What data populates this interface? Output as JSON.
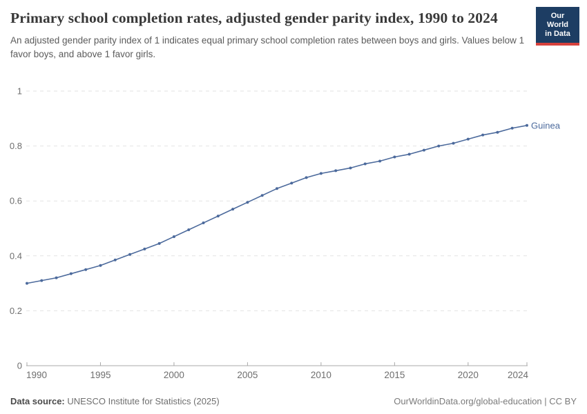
{
  "header": {
    "title": "Primary school completion rates, adjusted gender parity index, 1990 to 2024",
    "subtitle": "An adjusted gender parity index of 1 indicates equal primary school completion rates between boys and girls. Values below 1 favor boys, and above 1 favor girls.",
    "logo": {
      "line1": "Our World",
      "line2": "in Data"
    }
  },
  "chart_data": {
    "type": "line",
    "title": "Primary school completion rates, adjusted gender parity index, 1990 to 2024",
    "xlabel": "",
    "ylabel": "",
    "xlim": [
      1990,
      2024
    ],
    "ylim": [
      0,
      1
    ],
    "x_ticks": [
      1990,
      1995,
      2000,
      2005,
      2010,
      2015,
      2020,
      2024
    ],
    "y_ticks": [
      0,
      0.2,
      0.4,
      0.6,
      0.8,
      1
    ],
    "grid": "horizontal-dashed",
    "legend_position": "end-of-line-label",
    "x": [
      1990,
      1991,
      1992,
      1993,
      1994,
      1995,
      1996,
      1997,
      1998,
      1999,
      2000,
      2001,
      2002,
      2003,
      2004,
      2005,
      2006,
      2007,
      2008,
      2009,
      2010,
      2011,
      2012,
      2013,
      2014,
      2015,
      2016,
      2017,
      2018,
      2019,
      2020,
      2021,
      2022,
      2023,
      2024
    ],
    "series": [
      {
        "name": "Guinea",
        "color": "#4c6a9c",
        "values": [
          0.3,
          0.31,
          0.32,
          0.335,
          0.35,
          0.365,
          0.385,
          0.405,
          0.425,
          0.445,
          0.47,
          0.495,
          0.52,
          0.545,
          0.57,
          0.595,
          0.62,
          0.645,
          0.665,
          0.685,
          0.7,
          0.71,
          0.72,
          0.735,
          0.745,
          0.76,
          0.77,
          0.785,
          0.8,
          0.81,
          0.825,
          0.84,
          0.85,
          0.865,
          0.875
        ]
      }
    ]
  },
  "colors": {
    "line": "#4c6a9c",
    "grid": "#e2e2e2",
    "axis": "#a8a8a8",
    "tick_label": "#6e6e6e",
    "logo_bg": "#1d3d63",
    "logo_accent": "#d7413c"
  },
  "footer": {
    "source_label": "Data source:",
    "source_text": " UNESCO Institute for Statistics (2025)",
    "link_text": "OurWorldinData.org/global-education | CC BY"
  }
}
